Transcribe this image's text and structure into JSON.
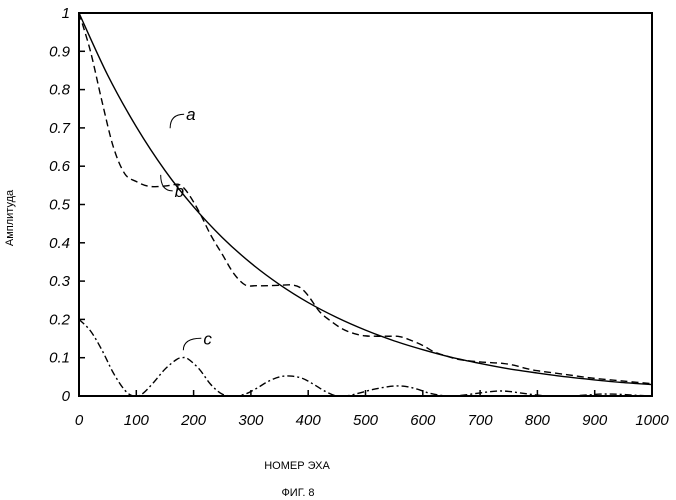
{
  "chart_data": {
    "type": "line",
    "title": "",
    "figure_label": "ФИГ. 8",
    "xlabel": "НОМЕР ЭХА",
    "ylabel": "Амплитуда",
    "xlim": [
      0,
      1000
    ],
    "ylim": [
      0,
      1
    ],
    "x_ticks": [
      0,
      100,
      200,
      300,
      400,
      500,
      600,
      700,
      800,
      900,
      1000
    ],
    "y_ticks": [
      0,
      0.1,
      0.2,
      0.3,
      0.4,
      0.5,
      0.6,
      0.7,
      0.8,
      0.9,
      1
    ],
    "y_tick_labels": [
      "0",
      "0.1",
      "0.2",
      "0.3",
      "0.4",
      "0.5",
      "0.6",
      "0.7",
      "0.8",
      "0.9",
      "1"
    ],
    "grid": false,
    "series": [
      {
        "name": "a",
        "style": "solid",
        "x": [
          0,
          50,
          100,
          150,
          200,
          250,
          300,
          350,
          400,
          450,
          500,
          550,
          600,
          650,
          700,
          750,
          800,
          850,
          900,
          950,
          1000
        ],
        "y": [
          1.0,
          0.838,
          0.703,
          0.589,
          0.494,
          0.414,
          0.347,
          0.291,
          0.244,
          0.205,
          0.172,
          0.144,
          0.121,
          0.101,
          0.085,
          0.071,
          0.06,
          0.05,
          0.042,
          0.035,
          0.03
        ]
      },
      {
        "name": "b",
        "style": "dashed",
        "x": [
          0,
          20,
          40,
          60,
          80,
          100,
          120,
          140,
          160,
          175,
          190,
          210,
          230,
          250,
          270,
          290,
          310,
          330,
          350,
          370,
          385,
          400,
          420,
          440,
          460,
          480,
          500,
          520,
          540,
          560,
          580,
          600,
          620,
          640,
          660,
          680,
          700,
          720,
          740,
          760,
          780,
          800,
          850,
          900,
          950,
          1000
        ],
        "y": [
          1.0,
          0.9,
          0.77,
          0.65,
          0.58,
          0.56,
          0.548,
          0.547,
          0.55,
          0.552,
          0.53,
          0.48,
          0.42,
          0.37,
          0.32,
          0.29,
          0.288,
          0.288,
          0.289,
          0.29,
          0.284,
          0.262,
          0.22,
          0.195,
          0.175,
          0.163,
          0.157,
          0.156,
          0.156,
          0.155,
          0.145,
          0.132,
          0.115,
          0.105,
          0.096,
          0.092,
          0.089,
          0.087,
          0.085,
          0.08,
          0.072,
          0.066,
          0.056,
          0.046,
          0.039,
          0.032
        ]
      },
      {
        "name": "c",
        "style": "dash-dot",
        "x": [
          0,
          20,
          40,
          60,
          80,
          95,
          110,
          130,
          150,
          170,
          180,
          190,
          210,
          230,
          250,
          270,
          290,
          310,
          330,
          350,
          370,
          390,
          410,
          430,
          450,
          470,
          490,
          510,
          530,
          550,
          570,
          590,
          610,
          630,
          650,
          670,
          690,
          710,
          730,
          750,
          770,
          790,
          810,
          830,
          850,
          870,
          890,
          910,
          930,
          950,
          970,
          1000
        ],
        "y": [
          0.2,
          0.17,
          0.12,
          0.06,
          0.015,
          0.0,
          0.005,
          0.035,
          0.07,
          0.095,
          0.1,
          0.097,
          0.07,
          0.03,
          0.005,
          0.0,
          0.005,
          0.02,
          0.038,
          0.05,
          0.052,
          0.046,
          0.03,
          0.012,
          0.0,
          0.001,
          0.008,
          0.016,
          0.022,
          0.026,
          0.025,
          0.018,
          0.008,
          0.002,
          0.0,
          0.002,
          0.006,
          0.01,
          0.013,
          0.012,
          0.008,
          0.004,
          0.001,
          0.0,
          0.0,
          0.001,
          0.003,
          0.005,
          0.005,
          0.004,
          0.002,
          0.0
        ]
      }
    ],
    "annotations": [
      {
        "text": "a",
        "series": "a",
        "x": 180,
        "y": 0.72
      },
      {
        "text": "b",
        "series": "b",
        "x": 160,
        "y": 0.52
      },
      {
        "text": "c",
        "series": "c",
        "x": 210,
        "y": 0.135
      }
    ]
  }
}
